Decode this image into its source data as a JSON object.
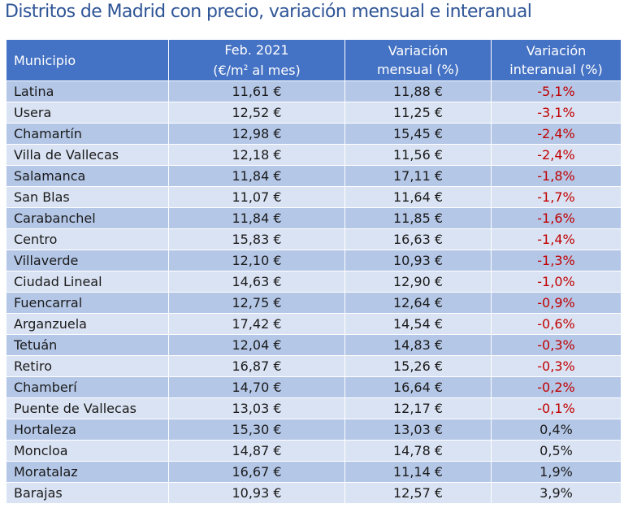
{
  "title": "Distritos de Madrid con precio, variación mensual e interanual",
  "headers": {
    "municipio": "Municipio",
    "precio_line1": "Feb. 2021",
    "precio_line2_a": "(€/m",
    "precio_line2_sup": "2",
    "precio_line2_b": " al mes)",
    "mensual_line1": "Variación",
    "mensual_line2": "mensual (%)",
    "interanual_line1": "Variación",
    "interanual_line2": "interanual (%)"
  },
  "rows": [
    {
      "municipio": "Latina",
      "precio": "11,61 €",
      "mensual": "11,88 €",
      "interanual": "-5,1%"
    },
    {
      "municipio": "Usera",
      "precio": "12,52 €",
      "mensual": "11,25 €",
      "interanual": "-3,1%"
    },
    {
      "municipio": "Chamartín",
      "precio": "12,98 €",
      "mensual": "15,45 €",
      "interanual": "-2,4%"
    },
    {
      "municipio": "Villa de Vallecas",
      "precio": "12,18 €",
      "mensual": "11,56 €",
      "interanual": "-2,4%"
    },
    {
      "municipio": "Salamanca",
      "precio": "11,84 €",
      "mensual": "17,11 €",
      "interanual": "-1,8%"
    },
    {
      "municipio": "San Blas",
      "precio": "11,07 €",
      "mensual": "11,64 €",
      "interanual": "-1,7%"
    },
    {
      "municipio": "Carabanchel",
      "precio": "11,84 €",
      "mensual": "11,85 €",
      "interanual": "-1,6%"
    },
    {
      "municipio": "Centro",
      "precio": "15,83 €",
      "mensual": "16,63 €",
      "interanual": "-1,4%"
    },
    {
      "municipio": "Villaverde",
      "precio": "12,10 €",
      "mensual": "10,93 €",
      "interanual": "-1,3%"
    },
    {
      "municipio": "Ciudad Lineal",
      "precio": "14,63 €",
      "mensual": "12,90 €",
      "interanual": "-1,0%"
    },
    {
      "municipio": "Fuencarral",
      "precio": "12,75 €",
      "mensual": "12,64 €",
      "interanual": "-0,9%"
    },
    {
      "municipio": "Arganzuela",
      "precio": "17,42 €",
      "mensual": "14,54 €",
      "interanual": "-0,6%"
    },
    {
      "municipio": "Tetuán",
      "precio": "12,04 €",
      "mensual": "14,83 €",
      "interanual": "-0,3%"
    },
    {
      "municipio": "Retiro",
      "precio": "16,87 €",
      "mensual": "15,26 €",
      "interanual": "-0,3%"
    },
    {
      "municipio": "Chamberí",
      "precio": "14,70 €",
      "mensual": "16,64 €",
      "interanual": "-0,2%"
    },
    {
      "municipio": "Puente de Vallecas",
      "precio": "13,03 €",
      "mensual": "12,17 €",
      "interanual": "-0,1%"
    },
    {
      "municipio": "Hortaleza",
      "precio": "15,30 €",
      "mensual": "13,03 €",
      "interanual": "0,4%"
    },
    {
      "municipio": "Moncloa",
      "precio": "14,87 €",
      "mensual": "14,78 €",
      "interanual": "0,5%"
    },
    {
      "municipio": "Moratalaz",
      "precio": "16,67 €",
      "mensual": "11,14 €",
      "interanual": "1,9%"
    },
    {
      "municipio": "Barajas",
      "precio": "10,93 €",
      "mensual": "12,57 €",
      "interanual": "3,9%"
    }
  ],
  "colors": {
    "header_bg": "#4472c4",
    "row_dark": "#b4c7e7",
    "row_light": "#dae3f3",
    "negative": "#c00000",
    "title": "#2f5597"
  }
}
